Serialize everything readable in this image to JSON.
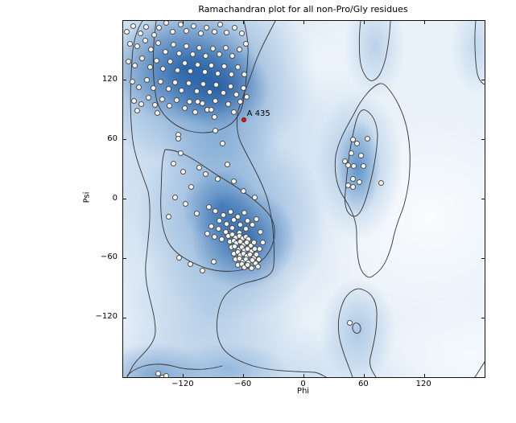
{
  "title": "Ramachandran plot for all non-Pro/Gly residues",
  "plot": {
    "xlabel": "Phi",
    "ylabel": "Psi",
    "xlim": [
      -180,
      180
    ],
    "ylim": [
      -180,
      180
    ],
    "xtick_values": [
      -120,
      -60,
      0,
      60,
      120
    ],
    "xtick_labels": [
      "−120",
      "−60",
      "0",
      "60",
      "120"
    ],
    "ytick_values": [
      120,
      60,
      0,
      -60,
      -120
    ],
    "ytick_labels": [
      "120",
      "60",
      "0",
      "−60",
      "−120"
    ]
  },
  "highlight": {
    "label": "A 435",
    "phi": -60,
    "psi": 80,
    "color": "#e3170d"
  },
  "colors": {
    "point_fill": "#fbfbf8",
    "point_edge": "#4d4d4d",
    "contour": "#333333",
    "density_dark": "#1b5aa0",
    "density_mid": "#5f93c7",
    "density_light": "#e9f1f9",
    "highlight": "#e3170d"
  },
  "chart_data": {
    "type": "scatter",
    "title": "Ramachandran plot for all non-Pro/Gly residues",
    "xlabel": "Phi",
    "ylabel": "Psi",
    "xlim": [
      -180,
      180
    ],
    "ylim": [
      -180,
      180
    ],
    "grid": false,
    "legend": false,
    "background": "blue kernel-density shading (Blues colormap) with dark contour lines outlining favoured/allowed regions",
    "series": [
      {
        "name": "non-Pro/Gly residues",
        "marker": "circle",
        "fill": "#fbfbf8",
        "edge": "#4d4d4d",
        "points": [
          [
            -176,
            169
          ],
          [
            -170,
            175
          ],
          [
            -163,
            167
          ],
          [
            -157,
            174
          ],
          [
            -149,
            166
          ],
          [
            -144,
            173
          ],
          [
            -137,
            178
          ],
          [
            -131,
            169
          ],
          [
            -123,
            176
          ],
          [
            -117,
            170
          ],
          [
            -110,
            175
          ],
          [
            -103,
            167
          ],
          [
            -97,
            173
          ],
          [
            -89,
            169
          ],
          [
            -83,
            176
          ],
          [
            -77,
            168
          ],
          [
            -69,
            173
          ],
          [
            -62,
            167
          ],
          [
            -173,
            157
          ],
          [
            -166,
            154
          ],
          [
            -158,
            160
          ],
          [
            -152,
            151
          ],
          [
            -145,
            158
          ],
          [
            -138,
            149
          ],
          [
            -130,
            156
          ],
          [
            -124,
            147
          ],
          [
            -117,
            154
          ],
          [
            -111,
            146
          ],
          [
            -104,
            153
          ],
          [
            -98,
            145
          ],
          [
            -91,
            152
          ],
          [
            -84,
            146
          ],
          [
            -78,
            153
          ],
          [
            -71,
            145
          ],
          [
            -64,
            151
          ],
          [
            -58,
            157
          ],
          [
            -175,
            139
          ],
          [
            -168,
            135
          ],
          [
            -161,
            142
          ],
          [
            -153,
            133
          ],
          [
            -147,
            140
          ],
          [
            -140,
            132
          ],
          [
            -133,
            139
          ],
          [
            -126,
            130
          ],
          [
            -119,
            137
          ],
          [
            -113,
            129
          ],
          [
            -106,
            136
          ],
          [
            -99,
            128
          ],
          [
            -92,
            135
          ],
          [
            -86,
            127
          ],
          [
            -79,
            134
          ],
          [
            -72,
            126
          ],
          [
            -66,
            133
          ],
          [
            -59,
            126
          ],
          [
            -171,
            119
          ],
          [
            -164,
            113
          ],
          [
            -156,
            120
          ],
          [
            -150,
            112
          ],
          [
            -143,
            119
          ],
          [
            -135,
            111
          ],
          [
            -128,
            118
          ],
          [
            -122,
            110
          ],
          [
            -115,
            117
          ],
          [
            -107,
            109
          ],
          [
            -100,
            116
          ],
          [
            -94,
            108
          ],
          [
            -87,
            115
          ],
          [
            -80,
            107
          ],
          [
            -73,
            114
          ],
          [
            -67,
            106
          ],
          [
            -60,
            112
          ],
          [
            -169,
            99
          ],
          [
            -162,
            96
          ],
          [
            -155,
            102
          ],
          [
            -148,
            95
          ],
          [
            -141,
            101
          ],
          [
            -134,
            94
          ],
          [
            -127,
            100
          ],
          [
            -114,
            98
          ],
          [
            -101,
            97
          ],
          [
            -88,
            99
          ],
          [
            -75,
            96
          ],
          [
            -63,
            98
          ],
          [
            -57,
            103
          ],
          [
            -166,
            89
          ],
          [
            -146,
            87
          ],
          [
            -108,
            88
          ],
          [
            -96,
            90
          ],
          [
            -70,
            88
          ],
          [
            -119,
            92
          ],
          [
            -106,
            98
          ],
          [
            -92,
            90
          ],
          [
            -89,
            83
          ],
          [
            -88,
            69
          ],
          [
            -125,
            65
          ],
          [
            -125,
            61
          ],
          [
            -81,
            56
          ],
          [
            -123,
            46
          ],
          [
            -130,
            36
          ],
          [
            -104,
            32
          ],
          [
            -76,
            35
          ],
          [
            -120,
            28
          ],
          [
            -98,
            25
          ],
          [
            -86,
            20
          ],
          [
            -112,
            12
          ],
          [
            -70,
            18
          ],
          [
            -128,
            2
          ],
          [
            -60,
            8
          ],
          [
            -118,
            -5
          ],
          [
            -49,
            2
          ],
          [
            -135,
            -18
          ],
          [
            -107,
            -15
          ],
          [
            -95,
            -8
          ],
          [
            -88,
            -12
          ],
          [
            -80,
            -16
          ],
          [
            -73,
            -13
          ],
          [
            -66,
            -18
          ],
          [
            -59,
            -14
          ],
          [
            -84,
            -22
          ],
          [
            -77,
            -25
          ],
          [
            -70,
            -21
          ],
          [
            -63,
            -26
          ],
          [
            -56,
            -22
          ],
          [
            -92,
            -28
          ],
          [
            -85,
            -30
          ],
          [
            -78,
            -33
          ],
          [
            -71,
            -29
          ],
          [
            -64,
            -34
          ],
          [
            -58,
            -30
          ],
          [
            -51,
            -26
          ],
          [
            -96,
            -35
          ],
          [
            -89,
            -38
          ],
          [
            -82,
            -41
          ],
          [
            -75,
            -37
          ],
          [
            -71,
            -36
          ],
          [
            -68,
            -39
          ],
          [
            -64,
            -37
          ],
          [
            -61,
            -40
          ],
          [
            -58,
            -38
          ],
          [
            -55,
            -41
          ],
          [
            -74,
            -43
          ],
          [
            -70,
            -42
          ],
          [
            -67,
            -45
          ],
          [
            -63,
            -43
          ],
          [
            -60,
            -46
          ],
          [
            -57,
            -44
          ],
          [
            -53,
            -47
          ],
          [
            -50,
            -44
          ],
          [
            -72,
            -49
          ],
          [
            -69,
            -48
          ],
          [
            -65,
            -51
          ],
          [
            -62,
            -49
          ],
          [
            -59,
            -52
          ],
          [
            -56,
            -50
          ],
          [
            -52,
            -53
          ],
          [
            -49,
            -50
          ],
          [
            -70,
            -55
          ],
          [
            -66,
            -54
          ],
          [
            -63,
            -57
          ],
          [
            -60,
            -55
          ],
          [
            -57,
            -58
          ],
          [
            -54,
            -56
          ],
          [
            -50,
            -59
          ],
          [
            -47,
            -56
          ],
          [
            -68,
            -61
          ],
          [
            -64,
            -60
          ],
          [
            -61,
            -63
          ],
          [
            -58,
            -61
          ],
          [
            -55,
            -64
          ],
          [
            -51,
            -62
          ],
          [
            -48,
            -65
          ],
          [
            -45,
            -61
          ],
          [
            -66,
            -67
          ],
          [
            -62,
            -66
          ],
          [
            -59,
            -69
          ],
          [
            -56,
            -67
          ],
          [
            -52,
            -70
          ],
          [
            -46,
            -68
          ],
          [
            -124,
            -59
          ],
          [
            -113,
            -66
          ],
          [
            -101,
            -72
          ],
          [
            -90,
            -63
          ],
          [
            -44,
            -50
          ],
          [
            -41,
            -44
          ],
          [
            -43,
            -33
          ],
          [
            -47,
            -20
          ],
          [
            49,
            60
          ],
          [
            53,
            56
          ],
          [
            47,
            46
          ],
          [
            57,
            44
          ],
          [
            41,
            38
          ],
          [
            44,
            34
          ],
          [
            50,
            33
          ],
          [
            59,
            33
          ],
          [
            49,
            20
          ],
          [
            55,
            17
          ],
          [
            44,
            14
          ],
          [
            49,
            12
          ],
          [
            63,
            61
          ],
          [
            77,
            16
          ],
          [
            46,
            -125
          ],
          [
            -145,
            -176
          ],
          [
            -141,
            -180
          ],
          [
            -137,
            -179
          ]
        ]
      },
      {
        "name": "highlighted residue",
        "label": "A 435",
        "marker": "circle",
        "fill": "#e3170d",
        "points": [
          [
            -60,
            80
          ]
        ]
      }
    ]
  }
}
